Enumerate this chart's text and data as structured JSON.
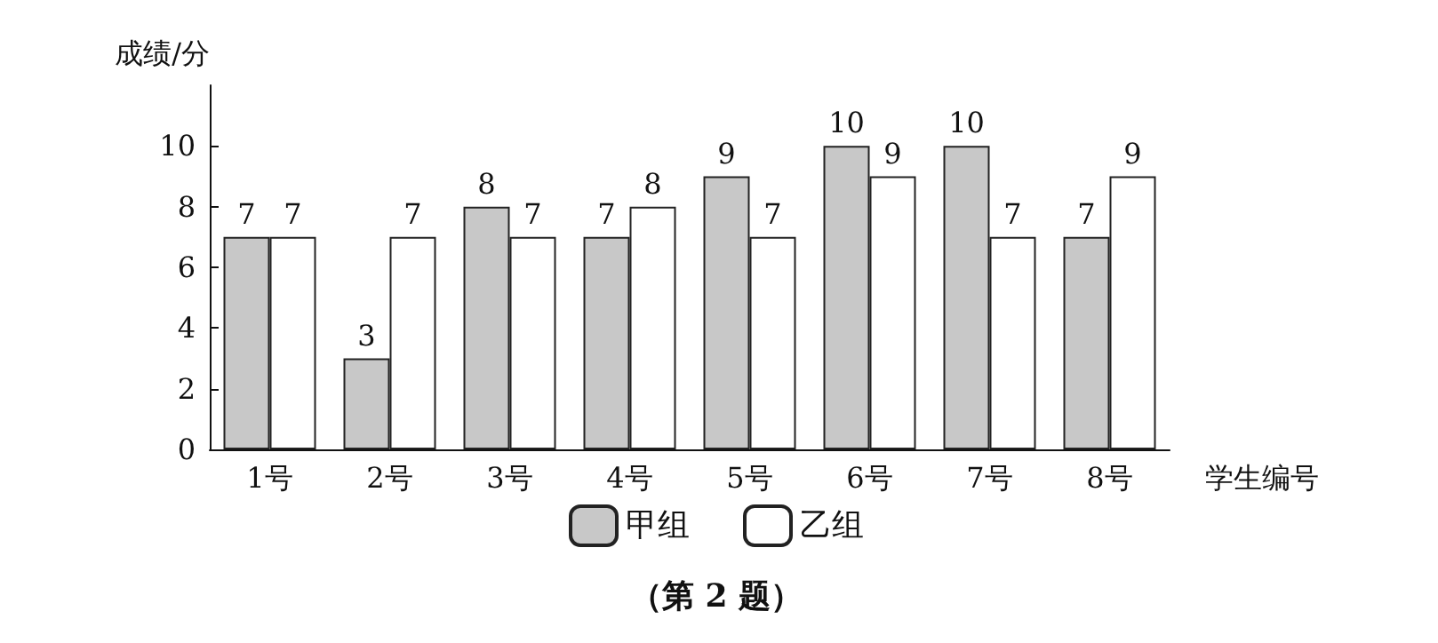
{
  "chart_data": {
    "type": "bar",
    "xlabel": "学生编号",
    "ylabel": "成绩/分",
    "categories": [
      "1号",
      "2号",
      "3号",
      "4号",
      "5号",
      "6号",
      "7号",
      "8号"
    ],
    "series": [
      {
        "name": "甲组",
        "color": "#c8c8c8",
        "values": [
          7,
          3,
          8,
          7,
          9,
          10,
          10,
          7
        ]
      },
      {
        "name": "乙组",
        "color": "#ffffff",
        "values": [
          7,
          7,
          7,
          8,
          7,
          9,
          7,
          9
        ]
      }
    ],
    "ylim": [
      0,
      12
    ],
    "yticks": [
      0,
      2,
      4,
      6,
      8,
      10
    ],
    "grid": false,
    "legend": "bottom",
    "data_labels": true,
    "annotations": [
      "（第 2 题）"
    ]
  }
}
